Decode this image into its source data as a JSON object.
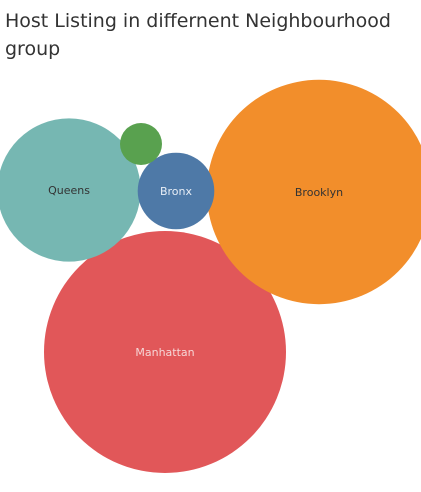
{
  "chart_data": {
    "type": "bubble",
    "title": "Host Listing in differnent Neighbourhood group",
    "items": [
      {
        "label": "Manhattan",
        "relative_size": 1.0,
        "color": "#e15759",
        "text_color": "#f6d6d6"
      },
      {
        "label": "Brooklyn",
        "relative_size": 0.86,
        "color": "#f28e2b",
        "text_color": "#333333"
      },
      {
        "label": "Queens",
        "relative_size": 0.35,
        "color": "#76b7b2",
        "text_color": "#333333"
      },
      {
        "label": "Bronx",
        "relative_size": 0.1,
        "color": "#4e79a7",
        "text_color": "#e8eef6"
      },
      {
        "label": "",
        "relative_size": 0.03,
        "color": "#59a14f",
        "text_color": "#333333"
      }
    ]
  }
}
